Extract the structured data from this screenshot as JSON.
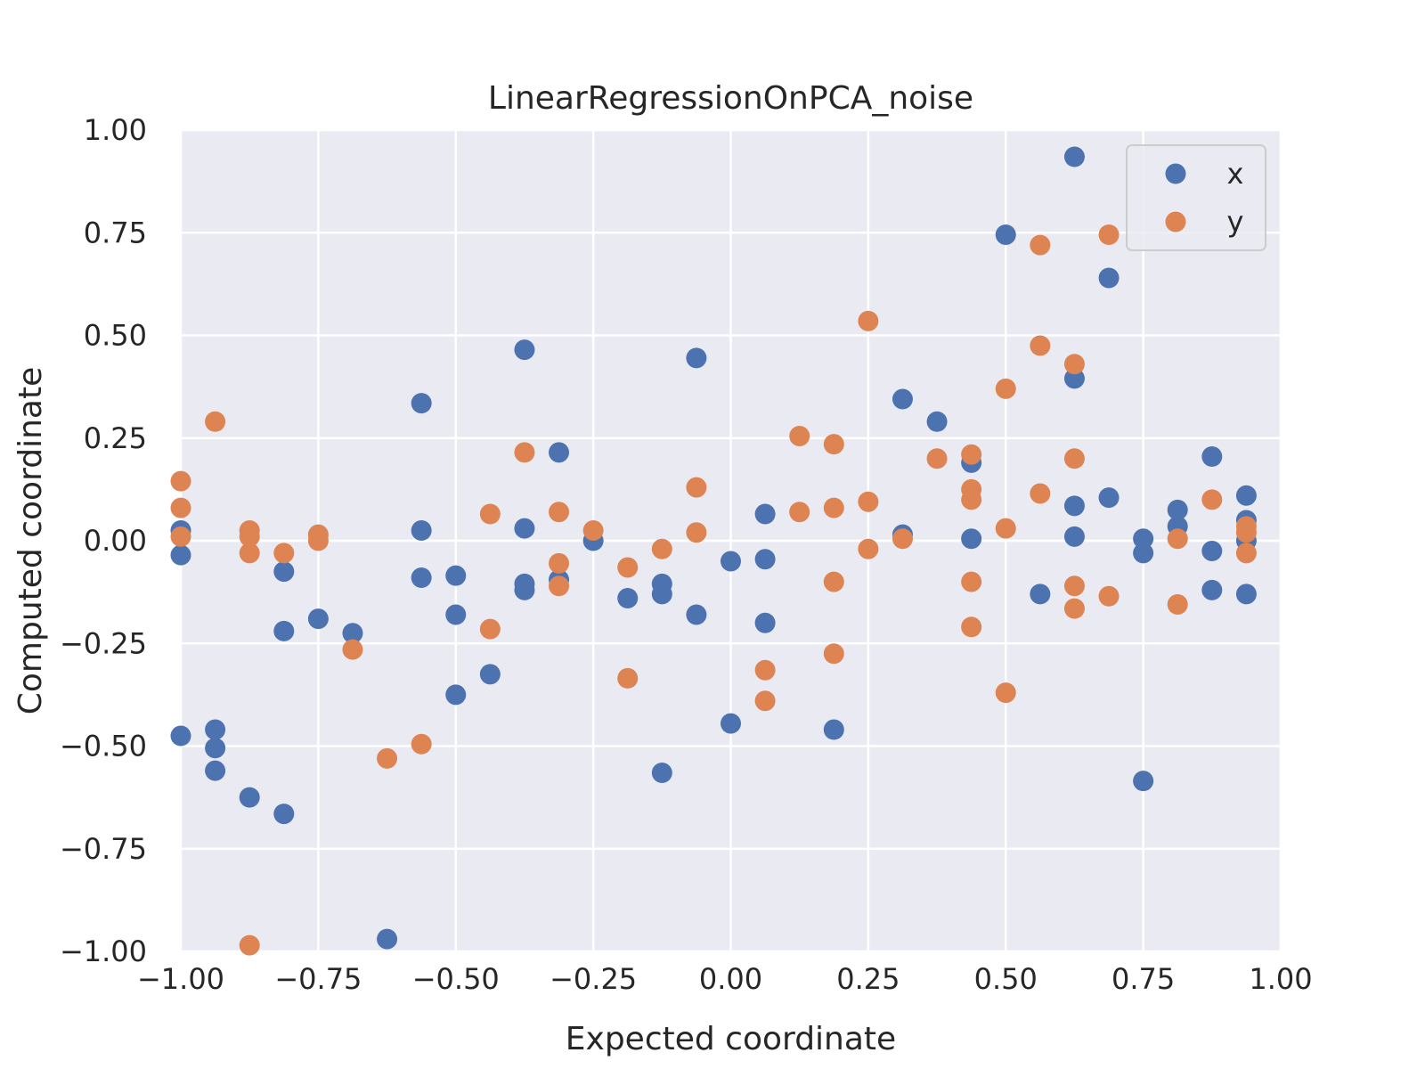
{
  "chart_data": {
    "type": "scatter",
    "title": "LinearRegressionOnPCA_noise",
    "xlabel": "Expected coordinate",
    "ylabel": "Computed coordinate",
    "xlim": [
      -1.0,
      1.0
    ],
    "ylim": [
      -1.0,
      1.0
    ],
    "xticks": [
      "−1.00",
      "−0.75",
      "−0.50",
      "−0.25",
      "0.00",
      "0.25",
      "0.50",
      "0.75",
      "1.00"
    ],
    "yticks": [
      "−1.00",
      "−0.75",
      "−0.50",
      "−0.25",
      "0.00",
      "0.25",
      "0.50",
      "0.75",
      "1.00"
    ],
    "grid": true,
    "background": "#eaeaf2",
    "legend_position": "top-right",
    "series": [
      {
        "name": "x",
        "color": "#4c72b0",
        "points": [
          [
            -1.0,
            0.025
          ],
          [
            -1.0,
            -0.035
          ],
          [
            -1.0,
            -0.475
          ],
          [
            -0.9375,
            -0.46
          ],
          [
            -0.9375,
            -0.505
          ],
          [
            -0.9375,
            -0.56
          ],
          [
            -0.875,
            -0.625
          ],
          [
            -0.8125,
            -0.075
          ],
          [
            -0.8125,
            -0.22
          ],
          [
            -0.8125,
            -0.665
          ],
          [
            -0.75,
            -0.19
          ],
          [
            -0.6875,
            -0.225
          ],
          [
            -0.625,
            -0.97
          ],
          [
            -0.5625,
            0.335
          ],
          [
            -0.5625,
            0.025
          ],
          [
            -0.5625,
            -0.09
          ],
          [
            -0.5,
            -0.085
          ],
          [
            -0.5,
            -0.18
          ],
          [
            -0.5,
            -0.375
          ],
          [
            -0.4375,
            -0.325
          ],
          [
            -0.375,
            0.465
          ],
          [
            -0.375,
            0.03
          ],
          [
            -0.375,
            -0.105
          ],
          [
            -0.375,
            -0.12
          ],
          [
            -0.3125,
            0.215
          ],
          [
            -0.3125,
            -0.095
          ],
          [
            -0.25,
            0.0
          ],
          [
            -0.1875,
            -0.14
          ],
          [
            -0.125,
            -0.105
          ],
          [
            -0.125,
            -0.13
          ],
          [
            -0.125,
            -0.565
          ],
          [
            -0.0625,
            0.445
          ],
          [
            -0.0625,
            -0.18
          ],
          [
            0.0,
            -0.05
          ],
          [
            0.0,
            -0.445
          ],
          [
            0.0625,
            0.065
          ],
          [
            0.0625,
            -0.045
          ],
          [
            0.0625,
            -0.2
          ],
          [
            0.1875,
            -0.46
          ],
          [
            0.3125,
            0.345
          ],
          [
            0.3125,
            0.015
          ],
          [
            0.375,
            0.29
          ],
          [
            0.4375,
            0.19
          ],
          [
            0.4375,
            0.005
          ],
          [
            0.5,
            0.745
          ],
          [
            0.5625,
            -0.13
          ],
          [
            0.625,
            0.935
          ],
          [
            0.625,
            0.395
          ],
          [
            0.625,
            0.085
          ],
          [
            0.625,
            0.01
          ],
          [
            0.6875,
            0.64
          ],
          [
            0.6875,
            0.105
          ],
          [
            0.75,
            0.005
          ],
          [
            0.75,
            -0.03
          ],
          [
            0.75,
            -0.585
          ],
          [
            0.8125,
            0.075
          ],
          [
            0.8125,
            0.035
          ],
          [
            0.875,
            0.205
          ],
          [
            0.875,
            -0.025
          ],
          [
            0.875,
            -0.12
          ],
          [
            0.9375,
            0.11
          ],
          [
            0.9375,
            0.05
          ],
          [
            0.9375,
            0.0
          ],
          [
            0.9375,
            -0.13
          ]
        ]
      },
      {
        "name": "y",
        "color": "#dd8452",
        "points": [
          [
            -1.0,
            0.145
          ],
          [
            -1.0,
            0.08
          ],
          [
            -1.0,
            0.01
          ],
          [
            -0.9375,
            0.29
          ],
          [
            -0.875,
            0.025
          ],
          [
            -0.875,
            0.01
          ],
          [
            -0.875,
            -0.03
          ],
          [
            -0.875,
            -0.985
          ],
          [
            -0.8125,
            -0.03
          ],
          [
            -0.75,
            0.015
          ],
          [
            -0.75,
            0.0
          ],
          [
            -0.6875,
            -0.265
          ],
          [
            -0.625,
            -0.53
          ],
          [
            -0.5625,
            -0.495
          ],
          [
            -0.4375,
            0.065
          ],
          [
            -0.4375,
            -0.215
          ],
          [
            -0.375,
            0.215
          ],
          [
            -0.3125,
            0.07
          ],
          [
            -0.3125,
            -0.055
          ],
          [
            -0.3125,
            -0.11
          ],
          [
            -0.25,
            0.025
          ],
          [
            -0.1875,
            -0.065
          ],
          [
            -0.1875,
            -0.335
          ],
          [
            -0.125,
            -0.02
          ],
          [
            -0.0625,
            0.13
          ],
          [
            -0.0625,
            0.02
          ],
          [
            0.0625,
            -0.315
          ],
          [
            0.0625,
            -0.39
          ],
          [
            0.125,
            0.255
          ],
          [
            0.125,
            0.07
          ],
          [
            0.1875,
            0.235
          ],
          [
            0.1875,
            0.08
          ],
          [
            0.1875,
            -0.1
          ],
          [
            0.1875,
            -0.275
          ],
          [
            0.25,
            0.535
          ],
          [
            0.25,
            0.095
          ],
          [
            0.25,
            -0.02
          ],
          [
            0.3125,
            0.005
          ],
          [
            0.375,
            0.2
          ],
          [
            0.4375,
            0.21
          ],
          [
            0.4375,
            0.125
          ],
          [
            0.4375,
            0.1
          ],
          [
            0.4375,
            -0.1
          ],
          [
            0.4375,
            -0.21
          ],
          [
            0.5,
            0.37
          ],
          [
            0.5,
            0.03
          ],
          [
            0.5,
            -0.37
          ],
          [
            0.5625,
            0.72
          ],
          [
            0.5625,
            0.475
          ],
          [
            0.5625,
            0.115
          ],
          [
            0.625,
            0.43
          ],
          [
            0.625,
            0.2
          ],
          [
            0.625,
            -0.11
          ],
          [
            0.625,
            -0.165
          ],
          [
            0.6875,
            0.745
          ],
          [
            0.6875,
            -0.135
          ],
          [
            0.8125,
            0.005
          ],
          [
            0.8125,
            -0.155
          ],
          [
            0.875,
            0.1
          ],
          [
            0.9375,
            0.035
          ],
          [
            0.9375,
            0.02
          ],
          [
            0.9375,
            -0.03
          ]
        ]
      }
    ]
  }
}
